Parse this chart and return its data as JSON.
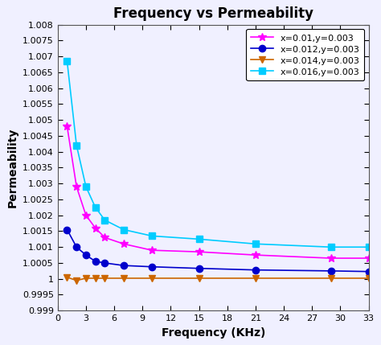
{
  "title": "Frequency vs Permeability",
  "xlabel": "Frequency (KHz)",
  "ylabel": "Permeability",
  "xlim": [
    0,
    33
  ],
  "ylim": [
    0.999,
    1.008
  ],
  "xticks": [
    0,
    3,
    6,
    9,
    12,
    15,
    18,
    21,
    24,
    27,
    30,
    33
  ],
  "ytick_values": [
    0.999,
    0.9995,
    1.0,
    1.0005,
    1.001,
    1.0015,
    1.002,
    1.0025,
    1.003,
    1.0035,
    1.004,
    1.0045,
    1.005,
    1.0055,
    1.006,
    1.0065,
    1.007,
    1.0075,
    1.008
  ],
  "ytick_labels": [
    "0.999",
    "0.9995",
    "1",
    "1.0005",
    "1.001",
    "1.0015",
    "1.002",
    "1.0025",
    "1.003",
    "1.0035",
    "1.004",
    "1.0045",
    "1.005",
    "1.0055",
    "1.006",
    "1.0065",
    "1.007",
    "1.0075",
    "1.008"
  ],
  "series": [
    {
      "label": "x=0.01,y=0.003",
      "color": "#ff00ff",
      "marker": "*",
      "markersize": 7,
      "x": [
        1,
        2,
        3,
        4,
        5,
        7,
        10,
        15,
        21,
        29,
        33
      ],
      "y": [
        1.0048,
        1.0029,
        1.002,
        1.0016,
        1.0013,
        1.0011,
        1.0009,
        1.00085,
        1.00075,
        1.00065,
        1.00065
      ]
    },
    {
      "label": "x=0.012,y=0.003",
      "color": "#0000cc",
      "marker": "o",
      "markersize": 6,
      "x": [
        1,
        2,
        3,
        4,
        5,
        7,
        10,
        15,
        21,
        29,
        33
      ],
      "y": [
        1.00155,
        1.001,
        1.00075,
        1.00055,
        1.0005,
        1.00042,
        1.00038,
        1.00033,
        1.00028,
        1.00025,
        1.00023
      ]
    },
    {
      "label": "x=0.014,y=0.003",
      "color": "#cc6600",
      "marker": "v",
      "markersize": 6,
      "x": [
        1,
        2,
        3,
        4,
        5,
        7,
        10,
        15,
        21,
        29,
        33
      ],
      "y": [
        1.00005,
        0.99995,
        1.00002,
        1.00002,
        1.00002,
        1.00002,
        1.00002,
        1.00002,
        1.00002,
        1.00002,
        1.00002
      ]
    },
    {
      "label": "x=0.016,y=0.003",
      "color": "#00ccff",
      "marker": "s",
      "markersize": 6,
      "x": [
        1,
        2,
        3,
        4,
        5,
        7,
        10,
        15,
        21,
        29,
        33
      ],
      "y": [
        1.00685,
        1.0042,
        1.0029,
        1.00225,
        1.00185,
        1.00155,
        1.00135,
        1.00125,
        1.0011,
        1.001,
        1.001
      ]
    }
  ],
  "plot_bg_color": "#f0f0ff",
  "fig_bg_color": "#f0f0ff",
  "title_fontsize": 12,
  "axis_label_fontsize": 10,
  "tick_fontsize": 8,
  "legend_fontsize": 8
}
